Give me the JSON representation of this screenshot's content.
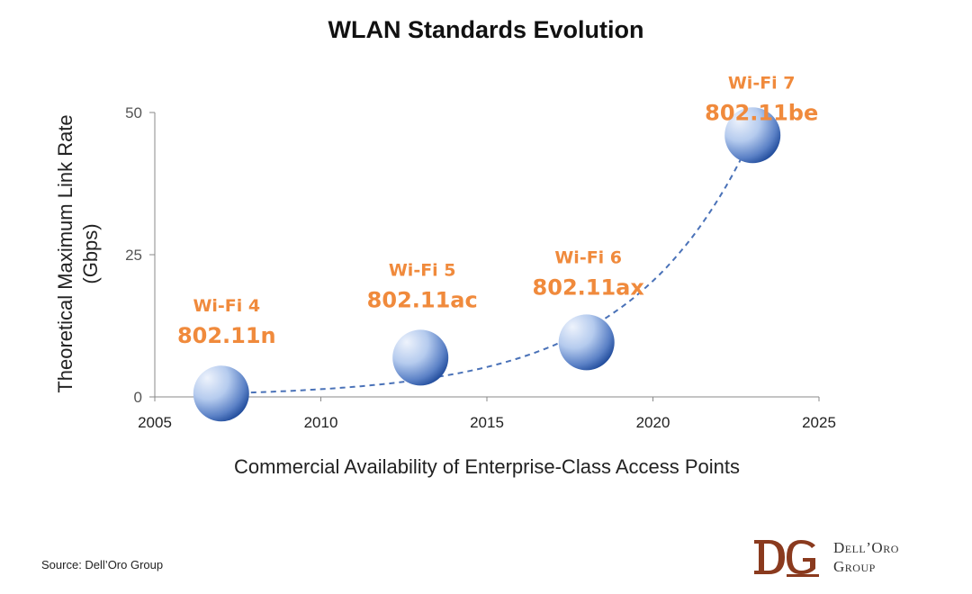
{
  "chart_data": {
    "type": "scatter",
    "title": "WLAN Standards Evolution",
    "xlabel": "Commercial Availability of Enterprise-Class Access Points",
    "ylabel_line1": "Theoretical Maximum Link Rate",
    "ylabel_line2": "(Gbps)",
    "xlim": [
      2005,
      2025
    ],
    "ylim": [
      0,
      50
    ],
    "xticks": [
      "2005",
      "2010",
      "2015",
      "2020",
      "2025"
    ],
    "yticks": [
      "0",
      "25",
      "50"
    ],
    "grid": false,
    "trendline": "exponential (dashed)",
    "points": [
      {
        "x": 2007,
        "y": 0.6,
        "generation": "Wi-Fi 4",
        "standard": "802.11n"
      },
      {
        "x": 2013,
        "y": 6.9,
        "generation": "Wi-Fi 5",
        "standard": "802.11ac"
      },
      {
        "x": 2018,
        "y": 9.6,
        "generation": "Wi-Fi 6",
        "standard": "802.11ax"
      },
      {
        "x": 2023,
        "y": 46,
        "generation": "Wi-Fi 7",
        "standard": "802.11be"
      }
    ]
  },
  "footer": {
    "source": "Source: Dell’Oro Group",
    "logo_line1": "Dell’Oro",
    "logo_line2": "Group"
  },
  "colors": {
    "label_orange": "#f08a3c",
    "trend_blue": "#4a72b8",
    "bubble_light": "#dfe9f8",
    "bubble_dark": "#2a54a3",
    "logo_brown": "#8a3a1e"
  }
}
